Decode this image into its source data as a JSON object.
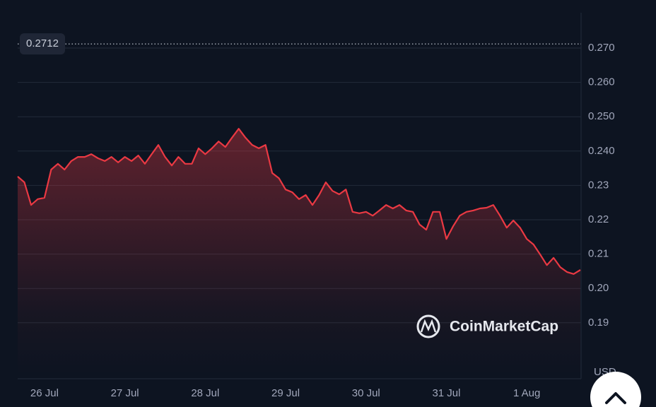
{
  "chart_data": {
    "type": "line",
    "color": "#ea3943",
    "categories": [
      null,
      null,
      null,
      null,
      "26 Jul",
      null,
      null,
      null,
      null,
      null,
      null,
      null,
      null,
      null,
      null,
      null,
      "27 Jul",
      null,
      null,
      null,
      null,
      null,
      null,
      null,
      null,
      null,
      null,
      null,
      "28 Jul",
      null,
      null,
      null,
      null,
      null,
      null,
      null,
      null,
      null,
      null,
      null,
      "29 Jul",
      null,
      null,
      null,
      null,
      null,
      null,
      null,
      null,
      null,
      null,
      null,
      "30 Jul",
      null,
      null,
      null,
      null,
      null,
      null,
      null,
      null,
      null,
      null,
      null,
      "31 Jul",
      null,
      null,
      null,
      null,
      null,
      null,
      null,
      null,
      null,
      null,
      null,
      "1 Aug",
      null,
      null,
      null,
      null,
      null,
      null,
      null,
      null
    ],
    "values": [
      0.2326,
      0.2309,
      0.2243,
      0.226,
      0.2264,
      0.2346,
      0.2363,
      0.2346,
      0.2371,
      0.2383,
      0.2383,
      0.2391,
      0.2379,
      0.2371,
      0.2383,
      0.2367,
      0.2383,
      0.2371,
      0.2387,
      0.2363,
      0.2391,
      0.2418,
      0.2383,
      0.2358,
      0.2383,
      0.2363,
      0.2363,
      0.2408,
      0.2391,
      0.2408,
      0.2428,
      0.2412,
      0.2439,
      0.2465,
      0.2439,
      0.2418,
      0.2408,
      0.2418,
      0.2336,
      0.2321,
      0.2288,
      0.228,
      0.226,
      0.2272,
      0.2243,
      0.2272,
      0.2309,
      0.2284,
      0.2274,
      0.2288,
      0.2223,
      0.2219,
      0.2223,
      0.2212,
      0.2227,
      0.2243,
      0.2233,
      0.2243,
      0.2227,
      0.2223,
      0.2186,
      0.2171,
      0.2223,
      0.2223,
      0.2144,
      0.2181,
      0.2212,
      0.2223,
      0.2227,
      0.2233,
      0.2235,
      0.2243,
      0.2212,
      0.2177,
      0.2198,
      0.2177,
      0.2144,
      0.2128,
      0.2099,
      0.2068,
      0.2089,
      0.2062,
      0.2048,
      0.2042,
      0.2054
    ],
    "ylim": [
      0.175,
      0.28
    ],
    "yticks": [
      {
        "value": 0.27,
        "label": "0.270"
      },
      {
        "value": 0.26,
        "label": "0.260"
      },
      {
        "value": 0.25,
        "label": "0.250"
      },
      {
        "value": 0.24,
        "label": "0.240"
      },
      0.23,
      0.22,
      0.21,
      {
        "value": 0.2,
        "label": "0.20"
      },
      0.19
    ],
    "y_axis_label": "USD",
    "reference_line": 0.2712,
    "grid": true,
    "watermark": "CoinMarketCap"
  }
}
